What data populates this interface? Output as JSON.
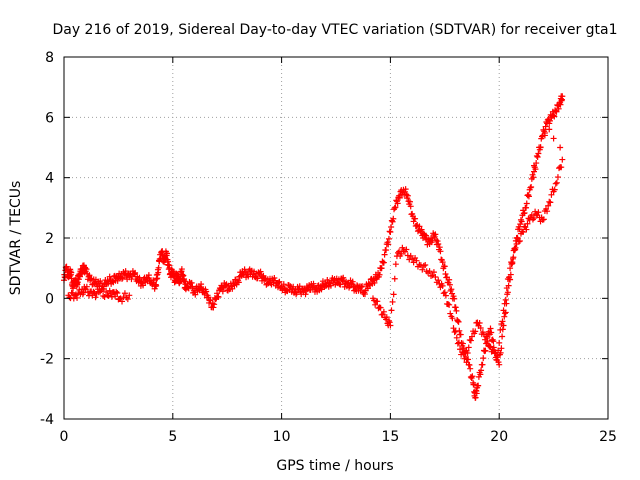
{
  "chart_data": {
    "type": "scatter",
    "title": "Day 216 of 2019, Sidereal Day-to-day VTEC variation (SDTVAR) for receiver gta1",
    "xlabel": "GPS time / hours",
    "ylabel": "SDTVAR / TECUs",
    "xlim": [
      0,
      25
    ],
    "ylim": [
      -4,
      8
    ],
    "xticks": [
      0,
      5,
      10,
      15,
      20,
      25
    ],
    "yticks": [
      -4,
      -2,
      0,
      2,
      4,
      6,
      8
    ],
    "grid": true,
    "marker": "+",
    "color": "#ff0000",
    "series": [
      {
        "name": "SDTVAR",
        "points": [
          [
            0.0,
            0.6
          ],
          [
            0.1,
            1.0
          ],
          [
            0.2,
            0.7
          ],
          [
            0.3,
            0.9
          ],
          [
            0.4,
            0.4
          ],
          [
            0.5,
            0.6
          ],
          [
            0.6,
            0.5
          ],
          [
            0.7,
            0.8
          ],
          [
            0.8,
            0.9
          ],
          [
            0.9,
            1.0
          ],
          [
            1.0,
            0.9
          ],
          [
            1.2,
            0.6
          ],
          [
            1.4,
            0.5
          ],
          [
            1.6,
            0.5
          ],
          [
            1.8,
            0.4
          ],
          [
            2.0,
            0.6
          ],
          [
            2.2,
            0.6
          ],
          [
            2.4,
            0.7
          ],
          [
            2.6,
            0.7
          ],
          [
            2.8,
            0.8
          ],
          [
            3.0,
            0.7
          ],
          [
            3.2,
            0.8
          ],
          [
            3.4,
            0.6
          ],
          [
            3.6,
            0.5
          ],
          [
            3.8,
            0.7
          ],
          [
            4.0,
            0.6
          ],
          [
            4.2,
            0.4
          ],
          [
            4.3,
            0.8
          ],
          [
            4.4,
            1.3
          ],
          [
            4.5,
            1.5
          ],
          [
            4.6,
            1.2
          ],
          [
            4.7,
            1.5
          ],
          [
            4.8,
            1.1
          ],
          [
            4.9,
            0.8
          ],
          [
            5.0,
            0.9
          ],
          [
            5.1,
            0.6
          ],
          [
            5.2,
            0.8
          ],
          [
            5.3,
            0.5
          ],
          [
            5.4,
            0.9
          ],
          [
            5.5,
            0.6
          ],
          [
            5.6,
            0.3
          ],
          [
            5.8,
            0.5
          ],
          [
            6.0,
            0.2
          ],
          [
            6.2,
            0.4
          ],
          [
            6.4,
            0.3
          ],
          [
            6.6,
            0.1
          ],
          [
            6.8,
            -0.3
          ],
          [
            7.0,
            0.0
          ],
          [
            7.2,
            0.3
          ],
          [
            7.4,
            0.4
          ],
          [
            7.6,
            0.3
          ],
          [
            7.8,
            0.5
          ],
          [
            8.0,
            0.6
          ],
          [
            8.2,
            0.9
          ],
          [
            8.4,
            0.8
          ],
          [
            8.6,
            0.9
          ],
          [
            8.8,
            0.7
          ],
          [
            9.0,
            0.8
          ],
          [
            9.2,
            0.6
          ],
          [
            9.4,
            0.5
          ],
          [
            9.6,
            0.6
          ],
          [
            9.8,
            0.5
          ],
          [
            10.0,
            0.4
          ],
          [
            10.2,
            0.3
          ],
          [
            10.4,
            0.4
          ],
          [
            10.6,
            0.2
          ],
          [
            10.8,
            0.3
          ],
          [
            11.0,
            0.2
          ],
          [
            11.2,
            0.3
          ],
          [
            11.4,
            0.4
          ],
          [
            11.6,
            0.3
          ],
          [
            11.8,
            0.4
          ],
          [
            12.0,
            0.5
          ],
          [
            12.2,
            0.5
          ],
          [
            12.4,
            0.6
          ],
          [
            12.6,
            0.5
          ],
          [
            12.8,
            0.6
          ],
          [
            13.0,
            0.4
          ],
          [
            13.2,
            0.5
          ],
          [
            13.4,
            0.3
          ],
          [
            13.6,
            0.4
          ],
          [
            13.8,
            0.2
          ],
          [
            14.0,
            0.5
          ],
          [
            14.2,
            0.6
          ],
          [
            14.4,
            0.7
          ],
          [
            14.6,
            1.0
          ],
          [
            14.8,
            1.6
          ],
          [
            15.0,
            2.2
          ],
          [
            15.2,
            3.0
          ],
          [
            15.4,
            3.4
          ],
          [
            15.6,
            3.6
          ],
          [
            15.8,
            3.4
          ],
          [
            16.0,
            2.8
          ],
          [
            16.2,
            2.4
          ],
          [
            16.4,
            2.2
          ],
          [
            16.6,
            2.0
          ],
          [
            16.8,
            1.8
          ],
          [
            17.0,
            2.1
          ],
          [
            17.2,
            1.8
          ],
          [
            17.4,
            1.2
          ],
          [
            17.6,
            0.7
          ],
          [
            17.8,
            0.3
          ],
          [
            18.0,
            -0.3
          ],
          [
            18.2,
            -1.2
          ],
          [
            18.4,
            -1.8
          ],
          [
            18.6,
            -2.2
          ],
          [
            18.8,
            -2.8
          ],
          [
            18.9,
            -3.3
          ],
          [
            19.0,
            -2.9
          ],
          [
            19.2,
            -2.2
          ],
          [
            19.4,
            -1.5
          ],
          [
            19.6,
            -1.0
          ],
          [
            19.8,
            -1.8
          ],
          [
            20.0,
            -2.2
          ],
          [
            20.2,
            -0.9
          ],
          [
            20.4,
            0.2
          ],
          [
            20.6,
            1.2
          ],
          [
            20.8,
            2.0
          ],
          [
            21.0,
            2.6
          ],
          [
            21.2,
            3.0
          ],
          [
            21.4,
            3.6
          ],
          [
            21.6,
            4.2
          ],
          [
            21.8,
            4.8
          ],
          [
            22.0,
            5.4
          ],
          [
            22.2,
            5.8
          ],
          [
            22.4,
            6.0
          ],
          [
            22.6,
            6.2
          ],
          [
            22.8,
            6.5
          ],
          [
            22.9,
            6.7
          ],
          [
            0.2,
            0.1
          ],
          [
            0.5,
            0.1
          ],
          [
            0.8,
            0.2
          ],
          [
            1.0,
            0.3
          ],
          [
            1.3,
            0.1
          ],
          [
            1.6,
            0.2
          ],
          [
            2.0,
            0.1
          ],
          [
            2.3,
            0.2
          ],
          [
            2.6,
            0.0
          ],
          [
            3.0,
            0.1
          ],
          [
            14.2,
            0.0
          ],
          [
            14.5,
            -0.3
          ],
          [
            14.8,
            -0.7
          ],
          [
            15.0,
            -0.9
          ],
          [
            15.3,
            1.4
          ],
          [
            15.6,
            1.6
          ],
          [
            16.0,
            1.3
          ],
          [
            16.4,
            1.1
          ],
          [
            16.8,
            0.9
          ],
          [
            17.2,
            0.6
          ],
          [
            17.5,
            0.2
          ],
          [
            17.8,
            -0.6
          ],
          [
            18.1,
            -1.5
          ],
          [
            18.4,
            -2.0
          ],
          [
            18.7,
            -1.4
          ],
          [
            19.0,
            -0.8
          ],
          [
            19.3,
            -1.2
          ],
          [
            19.6,
            -1.6
          ],
          [
            19.9,
            -1.9
          ],
          [
            20.2,
            -0.4
          ],
          [
            20.5,
            1.0
          ],
          [
            20.8,
            1.8
          ],
          [
            21.1,
            2.2
          ],
          [
            21.4,
            2.6
          ],
          [
            21.7,
            2.8
          ],
          [
            22.0,
            2.6
          ],
          [
            22.3,
            3.2
          ],
          [
            22.6,
            3.8
          ],
          [
            22.9,
            4.6
          ],
          [
            22.8,
            5.0
          ],
          [
            22.5,
            5.3
          ],
          [
            22.3,
            5.6
          ],
          [
            22.1,
            5.4
          ],
          [
            21.9,
            5.0
          ],
          [
            21.6,
            4.4
          ]
        ]
      }
    ]
  }
}
